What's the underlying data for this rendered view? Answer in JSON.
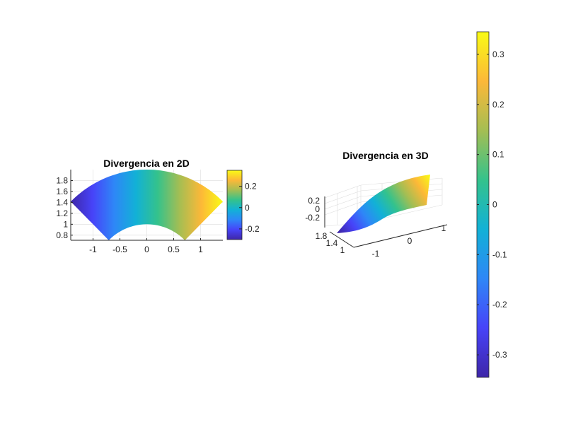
{
  "colormap": [
    "#3e26a8",
    "#4743f8",
    "#2e87f7",
    "#12b1d6",
    "#34c28c",
    "#a4be53",
    "#fcb838",
    "#f9fb15"
  ],
  "chart_data": [
    {
      "type": "heatmap",
      "title": "Divergencia en 2D",
      "view": "2D",
      "region": "annular sector, radius 1 to 2, angle 45° to 135°",
      "xlim": [
        -1.414,
        1.414
      ],
      "ylim": [
        0.707,
        2.0
      ],
      "xticks": [
        {
          "value": -1,
          "label": "-1"
        },
        {
          "value": -0.5,
          "label": "-0.5"
        },
        {
          "value": 0,
          "label": "0"
        },
        {
          "value": 0.5,
          "label": "0.5"
        },
        {
          "value": 1,
          "label": "1"
        }
      ],
      "yticks": [
        {
          "value": 0.8,
          "label": "0.8"
        },
        {
          "value": 1.0,
          "label": "1"
        },
        {
          "value": 1.2,
          "label": "1.2"
        },
        {
          "value": 1.4,
          "label": "1.4"
        },
        {
          "value": 1.6,
          "label": "1.6"
        },
        {
          "value": 1.8,
          "label": "1.8"
        }
      ],
      "clim": [
        -0.3,
        0.35
      ],
      "colorbar_ticks": [
        {
          "value": -0.2,
          "label": "-0.2"
        },
        {
          "value": 0,
          "label": "0"
        },
        {
          "value": 0.2,
          "label": "0.2"
        }
      ],
      "grid": true,
      "colorbar": "right"
    },
    {
      "type": "surface",
      "title": "Divergencia en 3D",
      "view": "3D",
      "region": "annular sector, radius 1 to 2, angle 45° to 135°",
      "xticks": [
        {
          "value": -1,
          "label": "-1"
        },
        {
          "value": 0,
          "label": "0"
        },
        {
          "value": 1,
          "label": "1"
        }
      ],
      "yticks": [
        {
          "value": 1,
          "label": "1"
        },
        {
          "value": 1.4,
          "label": "1.4"
        },
        {
          "value": 1.8,
          "label": "1.8"
        }
      ],
      "zticks": [
        {
          "value": -0.2,
          "label": "-0.2"
        },
        {
          "value": 0,
          "label": "0"
        },
        {
          "value": 0.2,
          "label": "0.2"
        }
      ],
      "grid": true
    },
    {
      "type": "colorbar",
      "clim": [
        -0.345,
        0.345
      ],
      "ticks": [
        {
          "value": 0.3,
          "label": "0.3"
        },
        {
          "value": 0.2,
          "label": "0.2"
        },
        {
          "value": 0.1,
          "label": "0.1"
        },
        {
          "value": 0,
          "label": "0"
        },
        {
          "value": -0.1,
          "label": "-0.1"
        },
        {
          "value": -0.2,
          "label": "-0.2"
        },
        {
          "value": -0.3,
          "label": "-0.3"
        }
      ]
    }
  ]
}
